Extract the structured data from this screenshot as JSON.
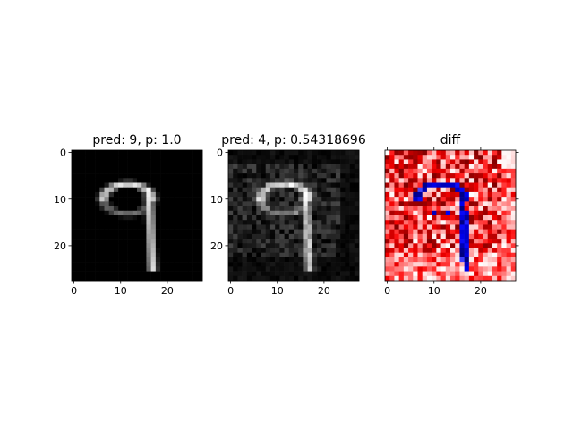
{
  "chart_data": [
    {
      "type": "heatmap",
      "title": "pred: 9, p: 1.0",
      "colormap": "gray",
      "xlim": [
        -0.5,
        27.5
      ],
      "ylim": [
        27.5,
        -0.5
      ],
      "xticks": [
        0,
        10,
        20
      ],
      "yticks": [
        0,
        10,
        20
      ],
      "xtick_labels": [
        "0",
        "10",
        "20"
      ],
      "ytick_labels": [
        "0",
        "10",
        "20"
      ],
      "tick_side": "left"
    },
    {
      "type": "heatmap",
      "title": "pred: 4, p: 0.54318696",
      "colormap": "gray",
      "xlim": [
        -0.5,
        27.5
      ],
      "ylim": [
        27.5,
        -0.5
      ],
      "xticks": [
        0,
        10,
        20
      ],
      "yticks": [
        0,
        10,
        20
      ],
      "xtick_labels": [
        "0",
        "10",
        "20"
      ],
      "ytick_labels": [
        "0",
        "10",
        "20"
      ],
      "tick_side": "left"
    },
    {
      "type": "heatmap",
      "title": "diff",
      "colormap": "seismic",
      "xlim": [
        -0.5,
        27.5
      ],
      "ylim": [
        27.5,
        -0.5
      ],
      "xticks": [
        0,
        10,
        20
      ],
      "yticks": [
        0,
        10,
        20
      ],
      "xtick_labels": [
        "0",
        "10",
        "20"
      ],
      "ytick_labels": [],
      "tick_side": "right"
    }
  ]
}
